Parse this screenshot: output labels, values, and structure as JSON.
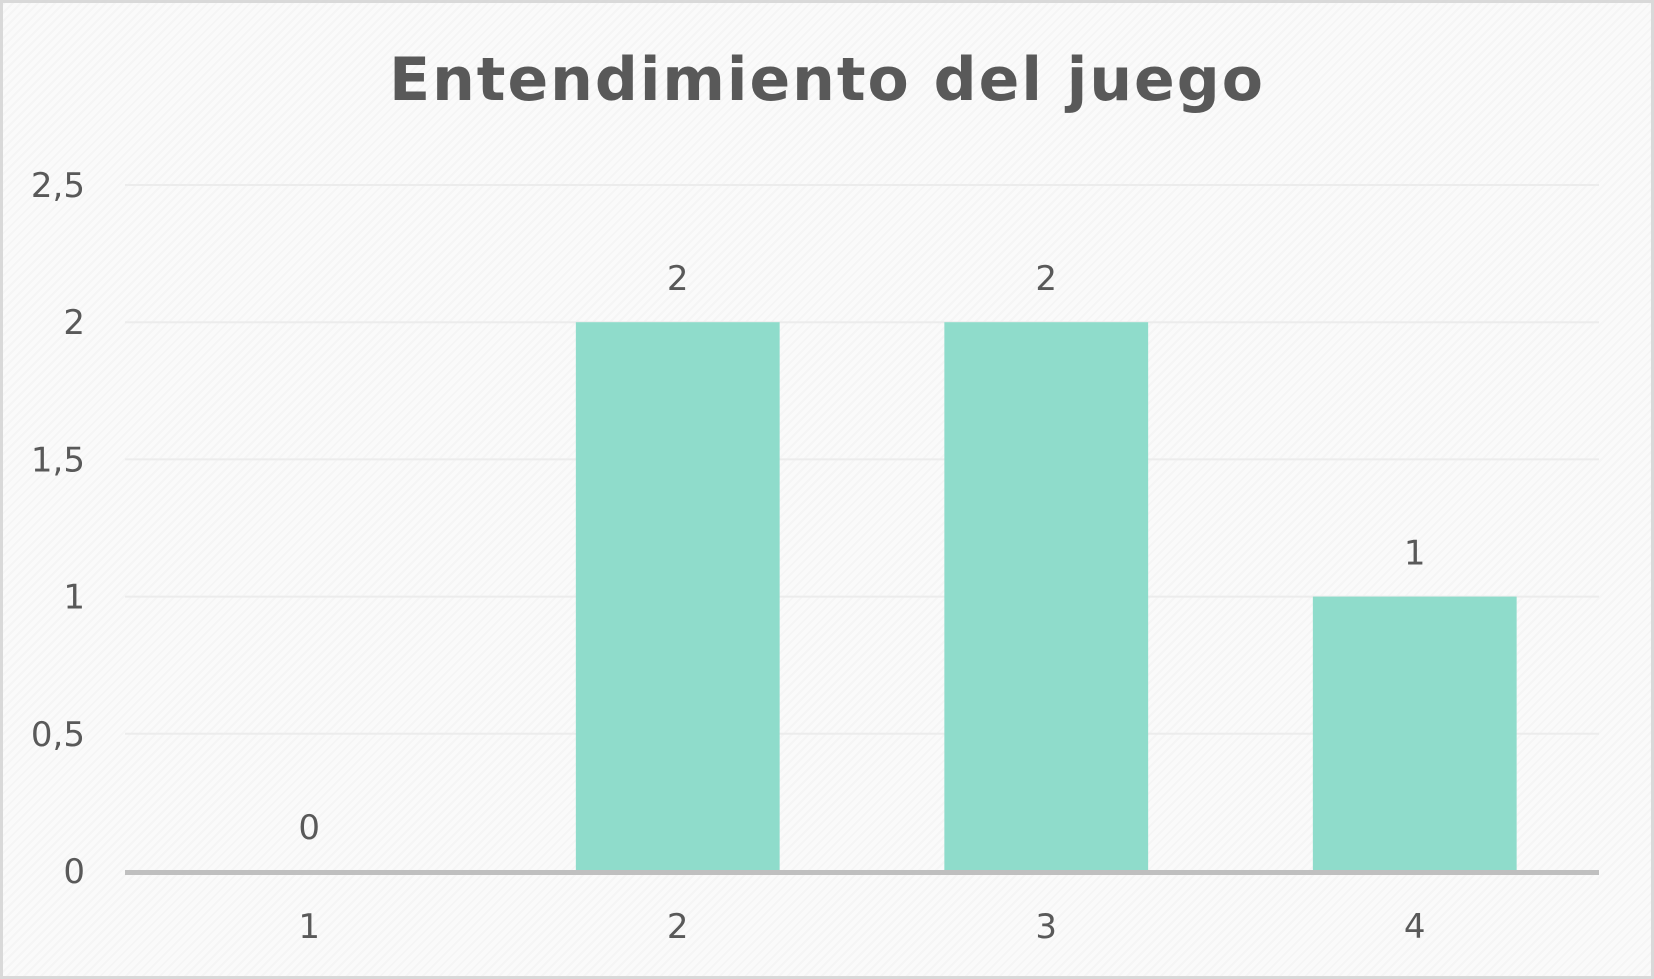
{
  "chart_data": {
    "type": "bar",
    "title": "Entendimiento del juego",
    "xlabel": "",
    "ylabel": "",
    "categories": [
      "1",
      "2",
      "3",
      "4"
    ],
    "values": [
      0,
      2,
      2,
      1
    ],
    "data_labels": [
      "0",
      "2",
      "2",
      "1"
    ],
    "ylim": [
      0,
      2.5
    ],
    "y_ticks": [
      0,
      0.5,
      1,
      1.5,
      2,
      2.5
    ],
    "y_tick_labels": [
      "0",
      "0,5",
      "1",
      "1,5",
      "2",
      "2,5"
    ],
    "grid": true,
    "legend": "none",
    "bar_color": "#8fdccb",
    "text_color": "#595959",
    "gridline_color": "#ececec",
    "axis_color": "#bfbfbf"
  }
}
